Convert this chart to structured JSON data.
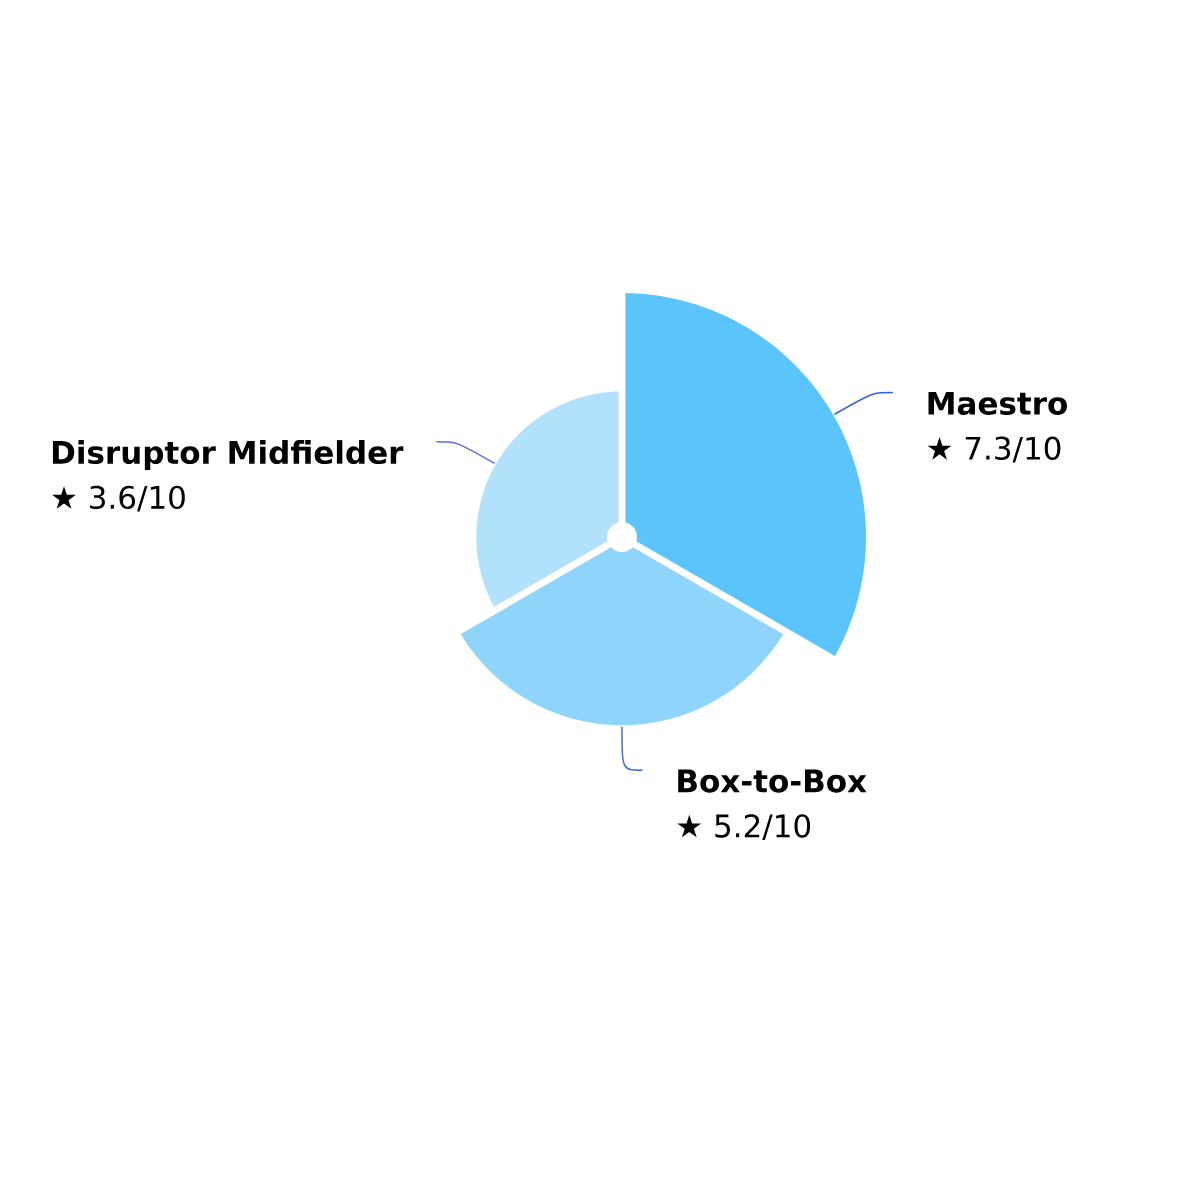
{
  "chart_data": {
    "type": "other",
    "categories": [
      "Maestro",
      "Box-to-Box",
      "Disruptor Midfielder"
    ],
    "values": [
      7.3,
      5.2,
      3.6
    ],
    "colors": [
      "#5bc4fb",
      "#8fd5fb",
      "#b1e1fb"
    ],
    "value_labels": [
      "★ 7.3/10",
      "★ 5.2/10",
      "★ 3.6/10"
    ]
  }
}
